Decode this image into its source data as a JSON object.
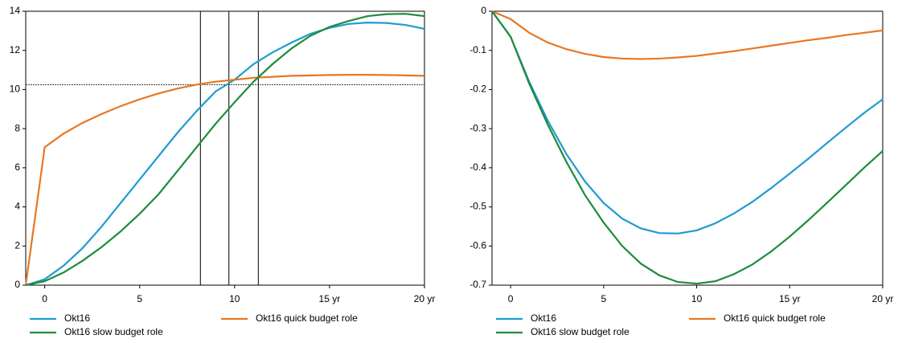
{
  "chart_data": [
    {
      "type": "line",
      "x": [
        -1,
        0,
        1,
        2,
        3,
        4,
        5,
        6,
        7,
        8,
        9,
        10,
        11,
        12,
        13,
        14,
        15,
        16,
        17,
        18,
        19,
        20
      ],
      "xlim": [
        -1,
        20
      ],
      "xticks": [
        0,
        5,
        10,
        {
          "value": 15,
          "label": "15 yr"
        },
        {
          "value": 20,
          "label": "20 yr"
        }
      ],
      "ylim": [
        0,
        14
      ],
      "yticks": [
        0,
        2,
        4,
        6,
        8,
        10,
        12,
        14
      ],
      "vlines": [
        8.2,
        9.7,
        11.25
      ],
      "hline": 10.25,
      "series": [
        {
          "name": "Okt16",
          "color": "#1f9bd1",
          "values": [
            0,
            0.3,
            1.0,
            1.9,
            3.0,
            4.2,
            5.4,
            6.6,
            7.8,
            8.9,
            9.9,
            10.5,
            11.3,
            11.9,
            12.4,
            12.85,
            13.15,
            13.35,
            13.42,
            13.4,
            13.3,
            13.1
          ]
        },
        {
          "name": "Okt16 quick budget role",
          "color": "#e87722",
          "values": [
            0,
            7.05,
            7.75,
            8.3,
            8.75,
            9.15,
            9.5,
            9.8,
            10.05,
            10.25,
            10.4,
            10.5,
            10.6,
            10.65,
            10.7,
            10.72,
            10.74,
            10.75,
            10.75,
            10.74,
            10.72,
            10.7
          ]
        },
        {
          "name": "Okt16 slow budget role",
          "color": "#1e8c3c",
          "values": [
            0,
            0.2,
            0.65,
            1.25,
            1.95,
            2.75,
            3.65,
            4.65,
            5.85,
            7.05,
            8.25,
            9.35,
            10.4,
            11.3,
            12.1,
            12.75,
            13.2,
            13.5,
            13.75,
            13.85,
            13.87,
            13.75
          ]
        }
      ]
    },
    {
      "type": "line",
      "x": [
        -1,
        0,
        1,
        2,
        3,
        4,
        5,
        6,
        7,
        8,
        9,
        10,
        11,
        12,
        13,
        14,
        15,
        16,
        17,
        18,
        19,
        20
      ],
      "xlim": [
        -1,
        20
      ],
      "xticks": [
        0,
        5,
        10,
        {
          "value": 15,
          "label": "15 yr"
        },
        {
          "value": 20,
          "label": "20 yr"
        }
      ],
      "ylim": [
        -0.7,
        0
      ],
      "yticks": [
        0,
        -0.1,
        -0.2,
        -0.3,
        -0.4,
        -0.5,
        -0.6,
        -0.7
      ],
      "hline": 0,
      "series": [
        {
          "name": "Okt16",
          "color": "#1f9bd1",
          "values": [
            0,
            -0.065,
            -0.18,
            -0.28,
            -0.365,
            -0.435,
            -0.49,
            -0.53,
            -0.555,
            -0.567,
            -0.568,
            -0.56,
            -0.542,
            -0.517,
            -0.487,
            -0.452,
            -0.415,
            -0.377,
            -0.337,
            -0.298,
            -0.26,
            -0.225
          ]
        },
        {
          "name": "Okt16 quick budget role",
          "color": "#e87722",
          "values": [
            0,
            -0.02,
            -0.055,
            -0.08,
            -0.097,
            -0.109,
            -0.117,
            -0.121,
            -0.122,
            -0.121,
            -0.118,
            -0.114,
            -0.108,
            -0.102,
            -0.095,
            -0.088,
            -0.081,
            -0.074,
            -0.068,
            -0.061,
            -0.055,
            -0.049
          ]
        },
        {
          "name": "Okt16 slow budget role",
          "color": "#1e8c3c",
          "values": [
            0,
            -0.065,
            -0.185,
            -0.29,
            -0.385,
            -0.47,
            -0.54,
            -0.6,
            -0.645,
            -0.675,
            -0.692,
            -0.696,
            -0.69,
            -0.672,
            -0.647,
            -0.614,
            -0.576,
            -0.534,
            -0.49,
            -0.445,
            -0.4,
            -0.357
          ]
        }
      ]
    }
  ]
}
